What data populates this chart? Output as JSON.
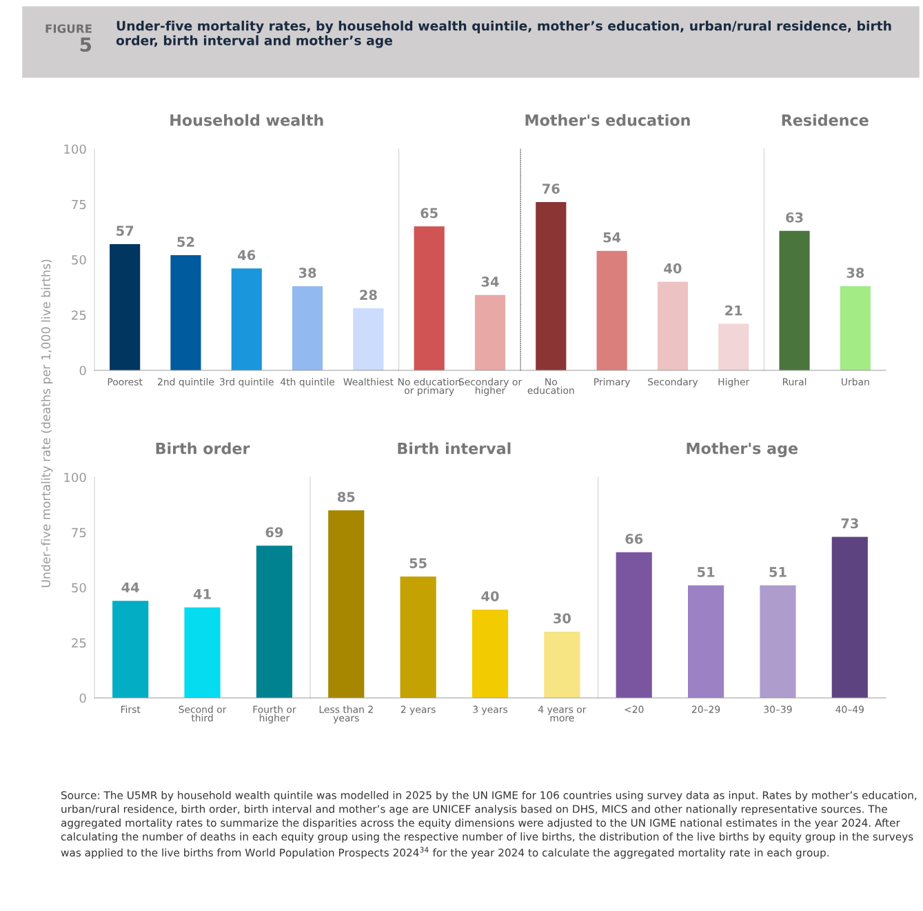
{
  "chart_data": [
    {
      "type": "bar",
      "title": "Household wealth",
      "ylabel": "Under–five mortality rate (deaths per 1,000 live births)",
      "annotations": [
        "FIGURE",
        "5",
        "Under-five mortality rates, by household wealth quintile, mother’s education, urban/rural residence, birth order, birth interval and mother’s age"
      ],
      "categories": [
        "Poorest",
        "2nd quintile",
        "3rd quintile",
        "4th quintile",
        "Wealthiest"
      ],
      "values": [
        57,
        52,
        46,
        38,
        28
      ],
      "colors": [
        "#003660",
        "#005a9e",
        "#1a96dc",
        "#93baf0",
        "#cbdcfc"
      ],
      "ylim": [
        0,
        100
      ],
      "yticks": [
        0,
        25,
        50,
        75,
        100
      ],
      "data_labels": true,
      "grid": false
    },
    {
      "type": "bar",
      "categories": [
        "No education\nor primary",
        "Secondary or\nhigher"
      ],
      "values": [
        65,
        34
      ],
      "colors": [
        "#d05453",
        "#e8a8a6"
      ],
      "ylim": [
        0,
        100
      ],
      "yticks": [
        0,
        25,
        50,
        75,
        100
      ],
      "tick_labels": "x",
      "data_labels": true,
      "grid": false
    },
    {
      "type": "bar",
      "title": "Mother's education",
      "categories": [
        "No\neducation",
        "Primary",
        "Secondary",
        "Higher"
      ],
      "values": [
        76,
        54,
        40,
        21
      ],
      "colors": [
        "#8b3535",
        "#db7f7c",
        "#ecc3c2",
        "#f2d5d6"
      ],
      "ylim": [
        0,
        100
      ],
      "yticks": [
        0,
        25,
        50,
        75,
        100
      ],
      "tick_labels": "x",
      "data_labels": true,
      "grid": false
    },
    {
      "type": "bar",
      "title": "Residence",
      "categories": [
        "Rural",
        "Urban"
      ],
      "values": [
        63,
        38
      ],
      "colors": [
        "#4a753d",
        "#a2eb85"
      ],
      "ylim": [
        0,
        100
      ],
      "yticks": [
        0,
        25,
        50,
        75,
        100
      ],
      "tick_labels": "x",
      "data_labels": true,
      "grid": false
    },
    {
      "type": "bar",
      "title": "Birth order",
      "categories": [
        "First",
        "Second or\nthird",
        "Fourth or\nhigher"
      ],
      "values": [
        44,
        41,
        69
      ],
      "colors": [
        "#03adc4",
        "#05dcf0",
        "#008290"
      ],
      "ylim": [
        0,
        100
      ],
      "yticks": [
        0,
        25,
        50,
        75,
        100
      ],
      "data_labels": true,
      "grid": false
    },
    {
      "type": "bar",
      "title": "Birth interval",
      "categories": [
        "Less than 2\nyears",
        "2 years",
        "3 years",
        "4 years or\nmore"
      ],
      "values": [
        85,
        55,
        40,
        30
      ],
      "colors": [
        "#a78700",
        "#c4a202",
        "#f2cb00",
        "#f7e483"
      ],
      "ylim": [
        0,
        100
      ],
      "yticks": [
        0,
        25,
        50,
        75,
        100
      ],
      "tick_labels": "x",
      "data_labels": true,
      "grid": false
    },
    {
      "type": "bar",
      "title": "Mother's age",
      "categories": [
        "<20",
        "20–29",
        "30–39",
        "40–49"
      ],
      "values": [
        66,
        51,
        51,
        73
      ],
      "colors": [
        "#7a56a0",
        "#9c82c4",
        "#ad9ccc",
        "#5e4381"
      ],
      "ylim": [
        0,
        100
      ],
      "yticks": [
        0,
        25,
        50,
        75,
        100
      ],
      "tick_labels": "x",
      "data_labels": true,
      "grid": false,
      "annotations": [
        "Source: The U5MR by household wealth quintile was modelled in 2025 by the UN IGME for 106 countries using survey data as input. Rates by mother’s education, urban/rural residence, birth order, birth interval and mother’s age are UNICEF analysis based on DHS, MICS and other nationally representative sources. The aggregated mortality rates to summarize the disparities across the equity dimensions were adjusted to the UN IGME national estimates in the year 2024. After calculating the number of deaths in each equity group using the respective number of live births, the distribution of the live births by equity group in the surveys was applied to the live births from World Population Prospects 2024$^{34}$ for the year 2024 to calculate the aggregated mortality rate in each group."
      ]
    }
  ]
}
